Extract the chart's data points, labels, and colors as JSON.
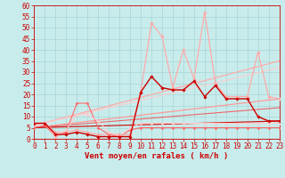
{
  "xlabel": "Vent moyen/en rafales ( km/h )",
  "xlim": [
    0,
    23
  ],
  "ylim": [
    0,
    60
  ],
  "yticks": [
    0,
    5,
    10,
    15,
    20,
    25,
    30,
    35,
    40,
    45,
    50,
    55,
    60
  ],
  "xticks": [
    0,
    1,
    2,
    3,
    4,
    5,
    6,
    7,
    8,
    9,
    10,
    11,
    12,
    13,
    14,
    15,
    16,
    17,
    18,
    19,
    20,
    21,
    22,
    23
  ],
  "bg_color": "#c8ecec",
  "grid_color": "#a8d4d4",
  "lines": [
    {
      "x": [
        0,
        1,
        2,
        3,
        4,
        5,
        6,
        7,
        8,
        9,
        10,
        11,
        12,
        13,
        14,
        15,
        16,
        17,
        18,
        19,
        20,
        21,
        22,
        23
      ],
      "y": [
        7,
        7,
        2,
        2,
        3,
        2,
        1,
        1,
        1,
        1,
        21,
        28,
        23,
        22,
        22,
        26,
        19,
        24,
        18,
        18,
        18,
        10,
        8,
        8
      ],
      "color": "#cc0000",
      "lw": 1.0,
      "marker": "D",
      "ms": 1.8,
      "linestyle": "-",
      "zorder": 5
    },
    {
      "x": [
        0,
        1,
        2,
        3,
        4,
        5,
        6,
        7,
        8,
        9,
        10,
        11,
        12,
        13,
        14,
        15,
        16,
        17,
        18,
        19,
        20,
        21,
        22,
        23
      ],
      "y": [
        7,
        7,
        3,
        3,
        4,
        3,
        2,
        2,
        2,
        2,
        21,
        52,
        46,
        23,
        40,
        27,
        57,
        25,
        19,
        19,
        19,
        39,
        19,
        18
      ],
      "color": "#ffaaaa",
      "lw": 0.9,
      "marker": "D",
      "ms": 1.8,
      "linestyle": "-",
      "zorder": 4
    },
    {
      "x": [
        0,
        23
      ],
      "y": [
        6,
        35
      ],
      "color": "#ffaaaa",
      "lw": 0.9,
      "marker": null,
      "linestyle": "-",
      "zorder": 3
    },
    {
      "x": [
        0,
        23
      ],
      "y": [
        6,
        32
      ],
      "color": "#ffcccc",
      "lw": 0.8,
      "marker": null,
      "linestyle": "-",
      "zorder": 3
    },
    {
      "x": [
        0,
        23
      ],
      "y": [
        5,
        18
      ],
      "color": "#ff9999",
      "lw": 0.9,
      "marker": null,
      "linestyle": "-",
      "zorder": 3
    },
    {
      "x": [
        0,
        23
      ],
      "y": [
        5,
        14
      ],
      "color": "#ee6666",
      "lw": 0.8,
      "marker": null,
      "linestyle": "-",
      "zorder": 3
    },
    {
      "x": [
        0,
        23
      ],
      "y": [
        5,
        8
      ],
      "color": "#cc0000",
      "lw": 0.8,
      "marker": null,
      "linestyle": "-",
      "zorder": 3
    },
    {
      "x": [
        0,
        1,
        2,
        3,
        4,
        5,
        6,
        7,
        8,
        9,
        10,
        11,
        12,
        13,
        14,
        15,
        16,
        17,
        18,
        19,
        20,
        21,
        22,
        23
      ],
      "y": [
        5,
        6,
        1,
        3,
        16,
        16,
        5,
        2,
        1,
        4,
        5,
        5,
        5,
        5,
        5,
        5,
        5,
        5,
        5,
        5,
        5,
        5,
        5,
        5
      ],
      "color": "#ff6666",
      "lw": 0.8,
      "marker": "D",
      "ms": 1.5,
      "linestyle": "-",
      "zorder": 4
    },
    {
      "x": [
        0,
        1,
        2,
        3,
        4,
        5,
        6,
        7,
        8,
        9,
        10,
        11,
        12,
        13,
        14,
        15,
        16,
        17,
        18,
        19,
        20,
        21,
        22,
        23
      ],
      "y": [
        6,
        7,
        1,
        4,
        11,
        11,
        8,
        3,
        1,
        5,
        7,
        7,
        7,
        7,
        7,
        7,
        7,
        7,
        7,
        7,
        7,
        7,
        7,
        7
      ],
      "color": "#ffcccc",
      "lw": 0.8,
      "marker": "D",
      "ms": 1.5,
      "linestyle": "-",
      "zorder": 4
    }
  ],
  "xlabel_color": "#cc0000",
  "tick_color": "#cc0000",
  "axis_label_fontsize": 6.5,
  "tick_fontsize": 5.5
}
